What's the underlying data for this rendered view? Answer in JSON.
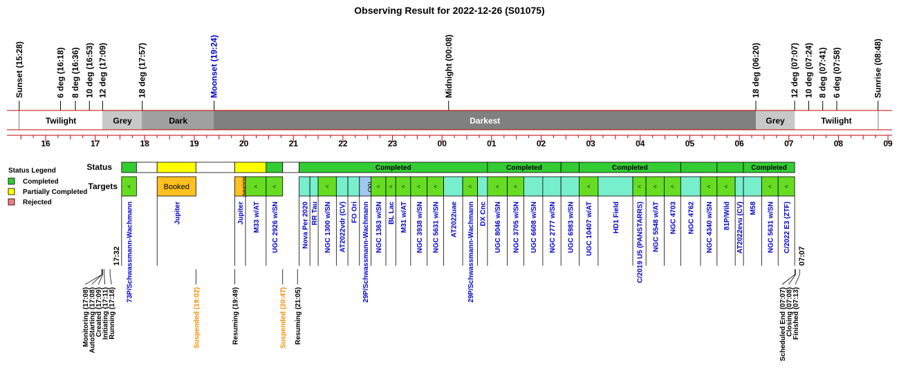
{
  "chart_data": {
    "type": "timeline",
    "title": "Observing Result for 2022-12-26 (S01075)",
    "x_axis": {
      "unit": "hour",
      "ticks": [
        "16",
        "17",
        "18",
        "19",
        "20",
        "21",
        "22",
        "23",
        "00",
        "01",
        "02",
        "03",
        "04",
        "05",
        "06",
        "07",
        "08",
        "09"
      ]
    },
    "events": [
      {
        "label": "Sunset (15:28)",
        "time": "15:28",
        "color": "#000000"
      },
      {
        "label": "6 deg (16:18)",
        "time": "16:18",
        "color": "#000000"
      },
      {
        "label": "8 deg (16:36)",
        "time": "16:36",
        "color": "#000000"
      },
      {
        "label": "10 deg (16:53)",
        "time": "16:53",
        "color": "#000000"
      },
      {
        "label": "12 deg (17:09)",
        "time": "17:09",
        "color": "#000000"
      },
      {
        "label": "18 deg (17:57)",
        "time": "17:57",
        "color": "#000000"
      },
      {
        "label": "Moonset (19:24)",
        "time": "19:24",
        "color": "#0000cc"
      },
      {
        "label": "Midnight (00:08)",
        "time": "00:08",
        "color": "#000000"
      },
      {
        "label": "18 deg (06:20)",
        "time": "06:20",
        "color": "#000000"
      },
      {
        "label": "12 deg (07:07)",
        "time": "07:07",
        "color": "#000000"
      },
      {
        "label": "10 deg (07:24)",
        "time": "07:24",
        "color": "#000000"
      },
      {
        "label": "8 deg (07:41)",
        "time": "07:41",
        "color": "#000000"
      },
      {
        "label": "6 deg (07:58)",
        "time": "07:58",
        "color": "#000000"
      },
      {
        "label": "Sunrise (08:48)",
        "time": "08:48",
        "color": "#000000"
      }
    ],
    "sky_periods": [
      {
        "label": "Twilight",
        "start": "15:28",
        "end": "17:09",
        "color": "#ffffff",
        "text_color": "#000000"
      },
      {
        "label": "Grey",
        "start": "17:09",
        "end": "17:57",
        "color": "#c8c8c8",
        "text_color": "#000000"
      },
      {
        "label": "Dark",
        "start": "17:57",
        "end": "19:24",
        "color": "#a0a0a0",
        "text_color": "#000000"
      },
      {
        "label": "Darkest",
        "start": "19:24",
        "end": "06:20",
        "color": "#808080",
        "text_color": "#ffffff"
      },
      {
        "label": "Grey",
        "start": "06:20",
        "end": "07:07",
        "color": "#c8c8c8",
        "text_color": "#000000"
      },
      {
        "label": "Twilight",
        "start": "07:07",
        "end": "08:48",
        "color": "#ffffff",
        "text_color": "#000000"
      }
    ],
    "row_labels": {
      "status": "Status",
      "targets": "Targets"
    },
    "legend": {
      "title": "Status Legend",
      "items": [
        {
          "label": "Completed",
          "color": "#33cc33"
        },
        {
          "label": "Partially Completed",
          "color": "#ffff00"
        },
        {
          "label": "Rejected",
          "color": "#f08080"
        }
      ]
    },
    "status_blocks": [
      {
        "start": "17:32",
        "end": "17:50",
        "status": "Completed",
        "label": ""
      },
      {
        "start": "17:50",
        "end": "18:15",
        "status": "empty",
        "label": ""
      },
      {
        "start": "18:15",
        "end": "19:02",
        "status": "Partially Completed",
        "label": ""
      },
      {
        "start": "19:02",
        "end": "19:49",
        "status": "empty",
        "label": ""
      },
      {
        "start": "19:49",
        "end": "20:27",
        "status": "Partially Completed",
        "label": ""
      },
      {
        "start": "20:27",
        "end": "20:47",
        "status": "Completed",
        "label": ""
      },
      {
        "start": "20:47",
        "end": "21:07",
        "status": "empty",
        "label": ""
      },
      {
        "start": "21:07",
        "end": "00:55",
        "status": "Completed",
        "label": "Completed"
      },
      {
        "start": "00:55",
        "end": "02:24",
        "status": "Completed",
        "label": "Completed"
      },
      {
        "start": "02:24",
        "end": "02:46",
        "status": "Completed",
        "label": ""
      },
      {
        "start": "02:46",
        "end": "04:49",
        "status": "Completed",
        "label": "Completed"
      },
      {
        "start": "04:49",
        "end": "05:33",
        "status": "Completed",
        "label": ""
      },
      {
        "start": "05:33",
        "end": "06:05",
        "status": "Completed",
        "label": ""
      },
      {
        "start": "06:05",
        "end": "07:07",
        "status": "Completed",
        "label": "Completed"
      }
    ],
    "targets": [
      {
        "name": "73P/Schwassmann-Wachmann",
        "start": "17:32",
        "end": "17:50",
        "fill": "#66dd22",
        "mark": "<",
        "label_color": "#0000cc"
      },
      {
        "name": "Jupiter",
        "start": "18:15",
        "end": "19:02",
        "fill": "#ffc020",
        "mark": "Booked",
        "label_color": "#0000cc"
      },
      {
        "name": "Jupiter",
        "start": "19:49",
        "end": "20:02",
        "fill": "#ffc020",
        "mark": "Booked",
        "label_color": "#0000cc"
      },
      {
        "name": "M33 w/AT",
        "start": "20:02",
        "end": "20:27",
        "fill": "#66dd22",
        "mark": "<",
        "label_color": "#0000cc"
      },
      {
        "name": "UGC 2926 w/SN",
        "start": "20:27",
        "end": "20:47",
        "fill": "#66dd22",
        "mark": "<",
        "label_color": "#0000cc"
      },
      {
        "name": "Nova Per 2020",
        "start": "21:07",
        "end": "21:20",
        "fill": "#77eecc",
        "mark": "",
        "label_color": "#0000cc"
      },
      {
        "name": "RR Tau",
        "start": "21:20",
        "end": "21:30",
        "fill": "#77eecc",
        "mark": "",
        "label_color": "#0000cc"
      },
      {
        "name": "NGC 1300 w/SN",
        "start": "21:30",
        "end": "21:52",
        "fill": "#66dd22",
        "mark": "<",
        "label_color": "#0000cc"
      },
      {
        "name": "AT2022vdr (CV)",
        "start": "21:52",
        "end": "22:06",
        "fill": "#77eecc",
        "mark": "",
        "label_color": "#0000cc"
      },
      {
        "name": "FO Ori",
        "start": "22:06",
        "end": "22:20",
        "fill": "#77eecc",
        "mark": "",
        "label_color": "#0000cc"
      },
      {
        "name": "29P/Schwassmann-Wachmann",
        "start": "22:20",
        "end": "22:34",
        "fill": "#a0c8f0",
        "mark": "ToO",
        "label_color": "#0000cc"
      },
      {
        "name": "NGC 1363 w/SN",
        "start": "22:34",
        "end": "22:52",
        "fill": "#66dd22",
        "mark": "<",
        "label_color": "#0000cc"
      },
      {
        "name": "BL Lac",
        "start": "22:52",
        "end": "23:04",
        "fill": "#66dd22",
        "mark": "<",
        "label_color": "#0000cc"
      },
      {
        "name": "M31 w/AT",
        "start": "23:04",
        "end": "23:22",
        "fill": "#66dd22",
        "mark": "<",
        "label_color": "#0000cc"
      },
      {
        "name": "NGC 3938 w/SN",
        "start": "23:22",
        "end": "23:42",
        "fill": "#66dd22",
        "mark": "<",
        "label_color": "#0000cc"
      },
      {
        "name": "NGC 5631 w/SN",
        "start": "23:42",
        "end": "24:02",
        "fill": "#66dd22",
        "mark": "<",
        "label_color": "#0000cc"
      },
      {
        "name": "AT2022uae",
        "start": "24:02",
        "end": "24:25",
        "fill": "#77eecc",
        "mark": "",
        "label_color": "#0000cc"
      },
      {
        "name": "29P/Schwassmann-Wachmann",
        "start": "24:25",
        "end": "24:43",
        "fill": "#66dd22",
        "mark": "<",
        "label_color": "#0000cc"
      },
      {
        "name": "DX Cnc",
        "start": "24:43",
        "end": "24:55",
        "fill": "#77eecc",
        "mark": "",
        "label_color": "#0000cc"
      },
      {
        "name": "UGC 8046 w/SN",
        "start": "24:55",
        "end": "25:19",
        "fill": "#66dd22",
        "mark": "<",
        "label_color": "#0000cc"
      },
      {
        "name": "NGC 3705 w/SN",
        "start": "25:19",
        "end": "25:39",
        "fill": "#66dd22",
        "mark": "<",
        "label_color": "#0000cc"
      },
      {
        "name": "UGC 6608 w/SN",
        "start": "25:39",
        "end": "26:02",
        "fill": "#77eecc",
        "mark": "",
        "label_color": "#0000cc"
      },
      {
        "name": "NGC 2777 w/SN",
        "start": "26:02",
        "end": "26:24",
        "fill": "#77eecc",
        "mark": "",
        "label_color": "#0000cc"
      },
      {
        "name": "UGC 6983 w/SN",
        "start": "26:24",
        "end": "26:46",
        "fill": "#77eecc",
        "mark": "",
        "label_color": "#0000cc"
      },
      {
        "name": "UGC 10407 w/AT",
        "start": "26:46",
        "end": "27:09",
        "fill": "#66dd22",
        "mark": "<",
        "label_color": "#0000cc"
      },
      {
        "name": "HD1 Field",
        "start": "27:09",
        "end": "27:51",
        "fill": "#77eecc",
        "mark": "",
        "label_color": "#0000cc"
      },
      {
        "name": "C/2019 U5 (PANSTARRS)",
        "start": "27:51",
        "end": "28:07",
        "fill": "#66dd22",
        "mark": "<",
        "label_color": "#0000cc"
      },
      {
        "name": "NGC 5548 w/AT",
        "start": "28:07",
        "end": "28:29",
        "fill": "#66dd22",
        "mark": "<",
        "label_color": "#0000cc"
      },
      {
        "name": "NGC 4703",
        "start": "28:29",
        "end": "28:49",
        "fill": "#66dd22",
        "mark": "<",
        "label_color": "#0000cc"
      },
      {
        "name": "NGC 4762",
        "start": "28:49",
        "end": "29:13",
        "fill": "#77eecc",
        "mark": "",
        "label_color": "#0000cc"
      },
      {
        "name": "NGC 4340 w/SN",
        "start": "29:13",
        "end": "29:33",
        "fill": "#66dd22",
        "mark": "<",
        "label_color": "#0000cc"
      },
      {
        "name": "81P/Wild",
        "start": "29:33",
        "end": "29:55",
        "fill": "#66dd22",
        "mark": "<",
        "label_color": "#0000cc"
      },
      {
        "name": "AT2022evu (CV)",
        "start": "29:55",
        "end": "30:05",
        "fill": "#77eecc",
        "mark": "",
        "label_color": "#0000cc"
      },
      {
        "name": "M58",
        "start": "30:05",
        "end": "30:27",
        "fill": "#77eecc",
        "mark": "",
        "label_color": "#0000cc"
      },
      {
        "name": "NGC 5631 w/SN",
        "start": "30:27",
        "end": "30:47",
        "fill": "#66dd22",
        "mark": "<",
        "label_color": "#0000cc"
      },
      {
        "name": "C/2022 E3 (ZTF)",
        "start": "30:47",
        "end": "31:07",
        "fill": "#66dd22",
        "mark": "<",
        "label_color": "#0000cc"
      }
    ],
    "time_labels": [
      {
        "label": "17:32",
        "time": "17:32"
      },
      {
        "label": "07:07",
        "time": "07:07"
      }
    ],
    "operations": [
      {
        "label": "Monitoring (17:08)",
        "time": "17:08",
        "color": "#000000"
      },
      {
        "label": "AutoStarting (17:08)",
        "time": "17:08",
        "color": "#000000"
      },
      {
        "label": "Created (17:09)",
        "time": "17:09",
        "color": "#000000"
      },
      {
        "label": "Initiating (17:11)",
        "time": "17:11",
        "color": "#000000"
      },
      {
        "label": "Running (17:18)",
        "time": "17:18",
        "color": "#000000"
      },
      {
        "label": "Suspended (19:02)",
        "time": "19:02",
        "color": "#ff8c00"
      },
      {
        "label": "Resuming (19:49)",
        "time": "19:49",
        "color": "#000000"
      },
      {
        "label": "Suspended (20:47)",
        "time": "20:47",
        "color": "#ff8c00"
      },
      {
        "label": "Resuming (21:05)",
        "time": "21:05",
        "color": "#000000"
      },
      {
        "label": "Scheduled End (07:07)",
        "time": "07:07",
        "color": "#000000"
      },
      {
        "label": "Closing (07:08)",
        "time": "07:08",
        "color": "#000000"
      },
      {
        "label": "Finished (07:13)",
        "time": "07:13",
        "color": "#000000"
      }
    ]
  }
}
